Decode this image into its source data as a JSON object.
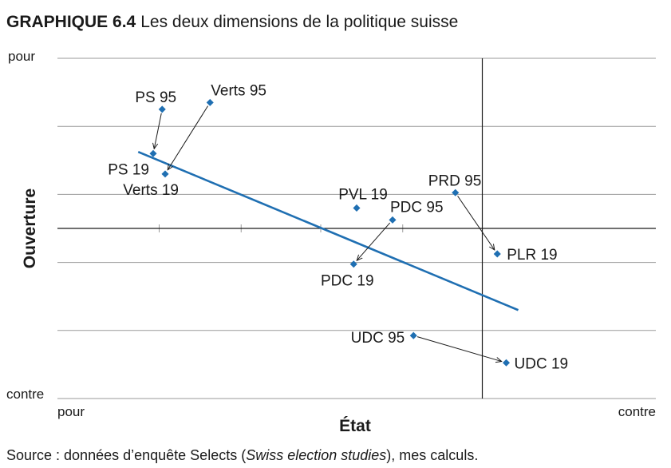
{
  "title": {
    "prefix": "GRAPHIQUE 6.4",
    "text": "Les deux dimensions de la politique suisse"
  },
  "source": {
    "before": "Source : données d’enquête Selects (",
    "italic": "Swiss election studies",
    "after": "), mes calculs."
  },
  "chart_data": {
    "type": "scatter",
    "xlabel": "État",
    "ylabel": "Ouverture",
    "x_end_labels": [
      "pour",
      "contre"
    ],
    "y_end_labels": [
      "pour",
      "contre"
    ],
    "xlim": [
      0,
      1
    ],
    "ylim": [
      0,
      1
    ],
    "grid": true,
    "points": [
      {
        "label": "PS 95",
        "x": 0.175,
        "y": 0.85
      },
      {
        "label": "Verts 95",
        "x": 0.255,
        "y": 0.87
      },
      {
        "label": "PS 19",
        "x": 0.16,
        "y": 0.72
      },
      {
        "label": "Verts 19",
        "x": 0.18,
        "y": 0.66
      },
      {
        "label": "PVL 19",
        "x": 0.5,
        "y": 0.56
      },
      {
        "label": "PDC 95",
        "x": 0.56,
        "y": 0.525
      },
      {
        "label": "PDC 19",
        "x": 0.495,
        "y": 0.395
      },
      {
        "label": "PRD 95",
        "x": 0.665,
        "y": 0.605
      },
      {
        "label": "PLR 19",
        "x": 0.735,
        "y": 0.425
      },
      {
        "label": "UDC 95",
        "x": 0.595,
        "y": 0.185
      },
      {
        "label": "UDC 19",
        "x": 0.75,
        "y": 0.105
      }
    ],
    "arrows": [
      {
        "from": "PS 95",
        "to": "PS 19"
      },
      {
        "from": "Verts 95",
        "to": "Verts 19"
      },
      {
        "from": "PDC 95",
        "to": "PDC 19"
      },
      {
        "from": "PRD 95",
        "to": "PLR 19"
      },
      {
        "from": "UDC 95",
        "to": "UDC 19"
      }
    ],
    "reference_lines": {
      "x": 0.71,
      "y": 0.5
    },
    "trend_line": {
      "x": [
        0.135,
        0.77
      ],
      "y": [
        0.725,
        0.26
      ],
      "color": "#1f6fb2"
    },
    "point_color": "#1f6fb2"
  }
}
